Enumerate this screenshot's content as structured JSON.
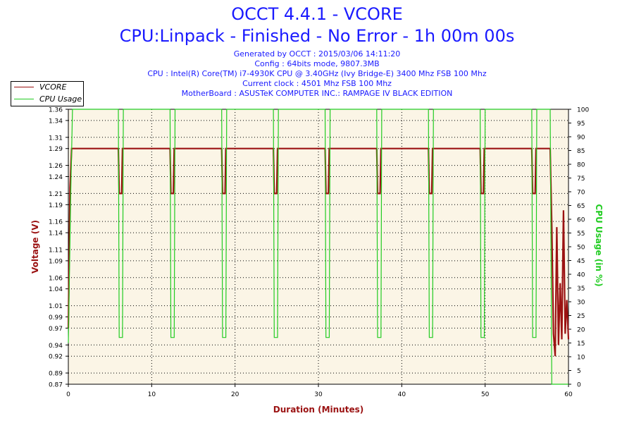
{
  "header": {
    "title": "OCCT 4.4.1 - VCORE",
    "subtitle": "CPU:Linpack - Finished - No Error - 1h 00m 00s",
    "generated": "Generated by OCCT : 2015/03/06 14:11:20",
    "config": "Config : 64bits mode, 9807.3MB",
    "cpu": "CPU : Intel(R) Core(TM) i7-4930K CPU @ 3.40GHz (Ivy Bridge-E) 3400 Mhz FSB 100 Mhz",
    "clock": "Current clock : 4501 Mhz FSB 100 Mhz",
    "motherboard": "MotherBoard : ASUSTeK COMPUTER INC.: RAMPAGE IV BLACK EDITION"
  },
  "colors": {
    "vcore": "#9b1212",
    "cpu": "#22cc22",
    "plot_bg": "#fbf5e6",
    "info_text": "#1a1aff"
  },
  "legend": {
    "items": [
      "VCORE",
      "CPU Usage"
    ]
  },
  "chart_data": {
    "type": "line",
    "title": "OCCT 4.4.1 - VCORE",
    "xlabel": "Duration (Minutes)",
    "ylabel_left": "Voltage (V)",
    "ylabel_right": "CPU Usage (in %)",
    "xlim": [
      0,
      60
    ],
    "ylim_left": [
      0.87,
      1.36
    ],
    "ylim_right": [
      0,
      100
    ],
    "x_ticks": [
      0,
      10,
      20,
      30,
      40,
      50,
      60
    ],
    "y_ticks_left": [
      0.87,
      0.89,
      0.92,
      0.94,
      0.97,
      0.99,
      1.01,
      1.04,
      1.06,
      1.09,
      1.11,
      1.14,
      1.16,
      1.19,
      1.21,
      1.24,
      1.26,
      1.29,
      1.31,
      1.34,
      1.36
    ],
    "y_ticks_left_labels": [
      "0.87",
      "0.89",
      "0.92",
      "0.94",
      "0.97",
      "0.99",
      "1.01",
      "1.04",
      "1.06",
      "1.09",
      "1.11",
      "1.14",
      "1.16",
      "1.19",
      "1.21",
      "1.24",
      "1.26",
      "1.29",
      "1.31",
      "1.34",
      "1.36"
    ],
    "y_ticks_right": [
      0,
      5,
      10,
      15,
      20,
      25,
      30,
      35,
      40,
      45,
      50,
      55,
      60,
      65,
      70,
      75,
      80,
      85,
      90,
      95,
      100
    ],
    "grid": true,
    "series": [
      {
        "name": "VCORE",
        "axis": "left",
        "points": [
          [
            0,
            0.97
          ],
          [
            0.2,
            1.22
          ],
          [
            0.4,
            1.29
          ],
          [
            6.0,
            1.29
          ],
          [
            6.1,
            1.21
          ],
          [
            6.4,
            1.21
          ],
          [
            6.5,
            1.29
          ],
          [
            12.2,
            1.29
          ],
          [
            12.3,
            1.21
          ],
          [
            12.6,
            1.21
          ],
          [
            12.7,
            1.29
          ],
          [
            18.4,
            1.29
          ],
          [
            18.5,
            1.21
          ],
          [
            18.8,
            1.21
          ],
          [
            18.9,
            1.29
          ],
          [
            24.6,
            1.29
          ],
          [
            24.7,
            1.21
          ],
          [
            25.0,
            1.21
          ],
          [
            25.1,
            1.29
          ],
          [
            30.8,
            1.29
          ],
          [
            30.9,
            1.21
          ],
          [
            31.2,
            1.21
          ],
          [
            31.3,
            1.29
          ],
          [
            37.0,
            1.29
          ],
          [
            37.1,
            1.21
          ],
          [
            37.4,
            1.21
          ],
          [
            37.5,
            1.29
          ],
          [
            43.2,
            1.29
          ],
          [
            43.3,
            1.21
          ],
          [
            43.6,
            1.21
          ],
          [
            43.7,
            1.29
          ],
          [
            49.4,
            1.29
          ],
          [
            49.5,
            1.21
          ],
          [
            49.8,
            1.21
          ],
          [
            49.9,
            1.29
          ],
          [
            55.6,
            1.29
          ],
          [
            55.7,
            1.21
          ],
          [
            56.0,
            1.21
          ],
          [
            56.1,
            1.29
          ],
          [
            57.8,
            1.29
          ],
          [
            58.0,
            1.15
          ],
          [
            58.2,
            0.96
          ],
          [
            58.4,
            0.92
          ],
          [
            58.6,
            1.15
          ],
          [
            58.8,
            0.94
          ],
          [
            59.0,
            1.05
          ],
          [
            59.2,
            0.95
          ],
          [
            59.4,
            1.18
          ],
          [
            59.6,
            0.96
          ],
          [
            59.8,
            1.02
          ],
          [
            60,
            0.95
          ]
        ]
      },
      {
        "name": "CPU Usage",
        "axis": "right",
        "points": [
          [
            0,
            15
          ],
          [
            0.3,
            70
          ],
          [
            0.5,
            100
          ],
          [
            6.0,
            100
          ],
          [
            6.1,
            17
          ],
          [
            6.5,
            17
          ],
          [
            6.6,
            100
          ],
          [
            12.2,
            100
          ],
          [
            12.3,
            17
          ],
          [
            12.7,
            17
          ],
          [
            12.8,
            100
          ],
          [
            18.4,
            100
          ],
          [
            18.5,
            17
          ],
          [
            18.9,
            17
          ],
          [
            19.0,
            100
          ],
          [
            24.6,
            100
          ],
          [
            24.7,
            17
          ],
          [
            25.1,
            17
          ],
          [
            25.2,
            100
          ],
          [
            30.8,
            100
          ],
          [
            30.9,
            17
          ],
          [
            31.3,
            17
          ],
          [
            31.4,
            100
          ],
          [
            37.0,
            100
          ],
          [
            37.1,
            17
          ],
          [
            37.5,
            17
          ],
          [
            37.6,
            100
          ],
          [
            43.2,
            100
          ],
          [
            43.3,
            17
          ],
          [
            43.7,
            17
          ],
          [
            43.8,
            100
          ],
          [
            49.4,
            100
          ],
          [
            49.5,
            17
          ],
          [
            49.9,
            17
          ],
          [
            50.0,
            100
          ],
          [
            55.6,
            100
          ],
          [
            55.7,
            17
          ],
          [
            56.1,
            17
          ],
          [
            56.2,
            100
          ],
          [
            57.8,
            100
          ],
          [
            58.0,
            0
          ],
          [
            60,
            0
          ]
        ]
      }
    ]
  }
}
